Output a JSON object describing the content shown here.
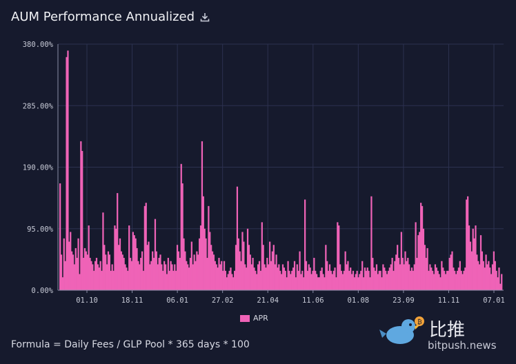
{
  "header": {
    "title": "AUM Performance Annualized",
    "download_icon": "download-icon"
  },
  "footer": {
    "formula": "Formula = Daily Fees / GLP Pool * 365 days * 100"
  },
  "legend": {
    "label": "APR",
    "color": "#ef63b7"
  },
  "watermark": {
    "chinese": "比推",
    "domain": "bitpush.news"
  },
  "colors": {
    "background": "#161a2d",
    "bar": "#ef63b7",
    "grid": "#2c3150",
    "axis": "#8a8fa8"
  },
  "chart_data": {
    "type": "bar",
    "title": "AUM Performance Annualized",
    "series": [
      {
        "name": "APR"
      }
    ],
    "ylim": [
      0,
      380
    ],
    "y_ticks": [
      0,
      95,
      190,
      285,
      380
    ],
    "y_tick_labels": [
      "0.00%",
      "95.00%",
      "190.00%",
      "285.00%",
      "380.00%"
    ],
    "x_tick_labels": [
      "01.10",
      "18.11",
      "06.01",
      "27.02",
      "21.04",
      "11.06",
      "01.08",
      "23.09",
      "11.11",
      "07.01"
    ],
    "grid": true,
    "legend_position": "bottom-center",
    "values": [
      165,
      55,
      20,
      80,
      45,
      360,
      370,
      75,
      90,
      60,
      55,
      40,
      65,
      50,
      80,
      25,
      230,
      215,
      50,
      65,
      60,
      55,
      100,
      50,
      45,
      40,
      30,
      45,
      50,
      40,
      35,
      45,
      30,
      120,
      70,
      55,
      40,
      60,
      55,
      30,
      40,
      30,
      100,
      95,
      150,
      70,
      80,
      60,
      55,
      50,
      40,
      35,
      30,
      100,
      50,
      45,
      90,
      85,
      80,
      65,
      45,
      40,
      50,
      60,
      30,
      130,
      135,
      70,
      75,
      40,
      45,
      60,
      50,
      110,
      60,
      40,
      50,
      55,
      40,
      30,
      45,
      40,
      25,
      50,
      30,
      45,
      40,
      30,
      40,
      30,
      70,
      60,
      50,
      195,
      165,
      80,
      60,
      45,
      40,
      35,
      50,
      75,
      40,
      55,
      45,
      60,
      55,
      80,
      100,
      230,
      145,
      95,
      80,
      50,
      130,
      90,
      70,
      60,
      55,
      45,
      40,
      35,
      50,
      40,
      45,
      30,
      45,
      30,
      20,
      25,
      30,
      35,
      25,
      20,
      30,
      70,
      160,
      80,
      60,
      45,
      90,
      75,
      40,
      35,
      95,
      70,
      55,
      40,
      50,
      35,
      30,
      25,
      40,
      45,
      30,
      105,
      70,
      40,
      35,
      50,
      40,
      75,
      45,
      60,
      70,
      40,
      55,
      35,
      40,
      30,
      25,
      40,
      35,
      30,
      20,
      45,
      30,
      25,
      30,
      35,
      45,
      20,
      40,
      30,
      60,
      25,
      30,
      20,
      140,
      45,
      30,
      40,
      35,
      25,
      30,
      50,
      30,
      25,
      20,
      20,
      30,
      35,
      25,
      20,
      70,
      45,
      30,
      40,
      30,
      25,
      30,
      35,
      20,
      105,
      100,
      40,
      30,
      25,
      30,
      60,
      40,
      45,
      30,
      35,
      25,
      30,
      20,
      25,
      30,
      20,
      25,
      30,
      45,
      20,
      35,
      30,
      35,
      30,
      20,
      145,
      50,
      35,
      30,
      40,
      25,
      30,
      30,
      20,
      40,
      35,
      30,
      25,
      30,
      35,
      40,
      50,
      30,
      45,
      55,
      70,
      50,
      40,
      90,
      50,
      40,
      60,
      45,
      50,
      40,
      30,
      35,
      30,
      40,
      105,
      50,
      85,
      90,
      135,
      130,
      95,
      70,
      50,
      65,
      30,
      40,
      35,
      30,
      25,
      40,
      35,
      30,
      25,
      20,
      45,
      35,
      30,
      25,
      30,
      30,
      50,
      55,
      60,
      35,
      30,
      25,
      30,
      35,
      45,
      30,
      25,
      30,
      35,
      140,
      145,
      100,
      75,
      60,
      95,
      80,
      100,
      55,
      45,
      40,
      85,
      60,
      45,
      35,
      55,
      40,
      45,
      35,
      25,
      40,
      60,
      45,
      30,
      20,
      35,
      10,
      25
    ]
  }
}
